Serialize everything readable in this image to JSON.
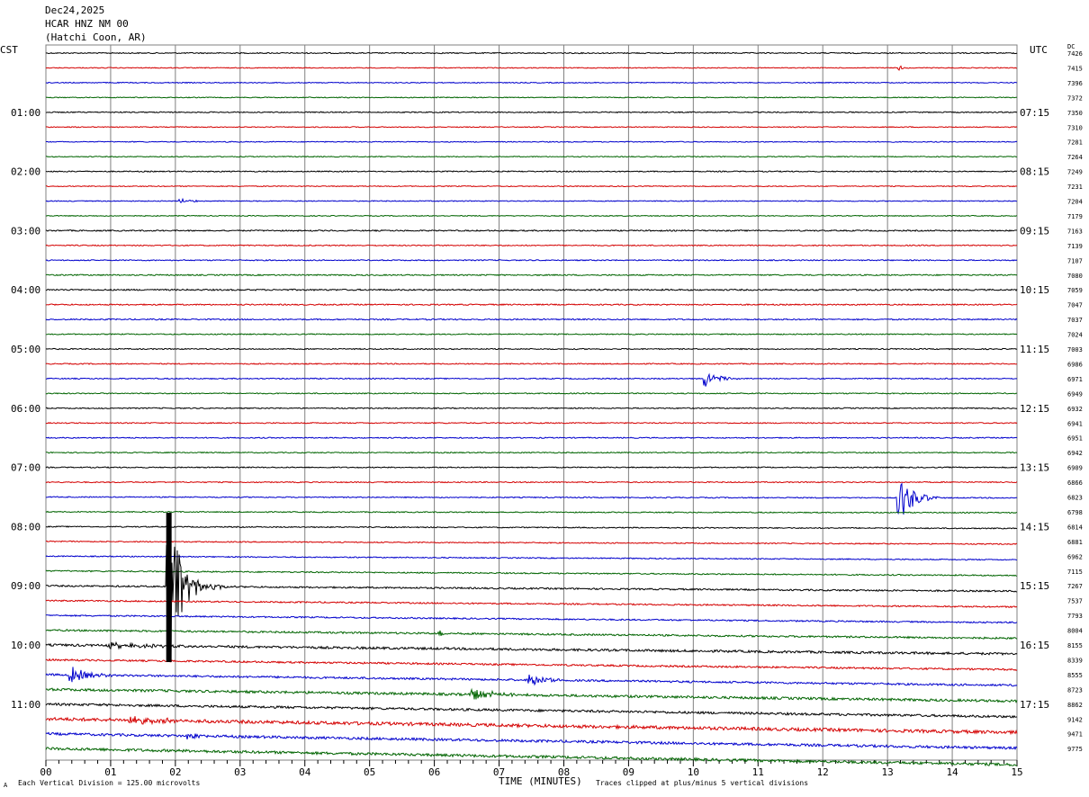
{
  "header": {
    "date": "Dec24,2025",
    "station": "HCAR HNZ NM 00",
    "location": "(Hatchi Coon, AR)"
  },
  "left_tz": "CST",
  "right_tz": "UTC",
  "dc_label": "DC",
  "footer": {
    "scale": "Each Vertical Division =  125.00 microvolts",
    "xlabel": "TIME (MINUTES)",
    "clip_note": "Traces clipped at plus/minus 5 vertical divisions",
    "corner": "A"
  },
  "colors": {
    "black": "#000000",
    "red": "#d40000",
    "blue": "#0000cc",
    "green": "#006400",
    "grid": "#808080"
  },
  "chart_data": {
    "type": "line",
    "title": "HCAR HNZ NM 00",
    "xlabel": "TIME (MINUTES)",
    "xlim": [
      0,
      15
    ],
    "x_ticks": [
      "00",
      "01",
      "02",
      "03",
      "04",
      "05",
      "06",
      "07",
      "08",
      "09",
      "10",
      "11",
      "12",
      "13",
      "14",
      "15"
    ],
    "trace_count": 48,
    "trace_interval_minutes": 15,
    "trace_colors_cycle": [
      "black",
      "red",
      "blue",
      "green"
    ],
    "left_time_labels": [
      {
        "trace": 4,
        "label": "01:00"
      },
      {
        "trace": 8,
        "label": "02:00"
      },
      {
        "trace": 12,
        "label": "03:00"
      },
      {
        "trace": 16,
        "label": "04:00"
      },
      {
        "trace": 20,
        "label": "05:00"
      },
      {
        "trace": 24,
        "label": "06:00"
      },
      {
        "trace": 28,
        "label": "07:00"
      },
      {
        "trace": 32,
        "label": "08:00"
      },
      {
        "trace": 36,
        "label": "09:00"
      },
      {
        "trace": 40,
        "label": "10:00"
      },
      {
        "trace": 44,
        "label": "11:00"
      }
    ],
    "right_time_labels": [
      {
        "trace": 4,
        "label": "07:15"
      },
      {
        "trace": 8,
        "label": "08:15"
      },
      {
        "trace": 12,
        "label": "09:15"
      },
      {
        "trace": 16,
        "label": "10:15"
      },
      {
        "trace": 20,
        "label": "11:15"
      },
      {
        "trace": 24,
        "label": "12:15"
      },
      {
        "trace": 28,
        "label": "13:15"
      },
      {
        "trace": 32,
        "label": "14:15"
      },
      {
        "trace": 36,
        "label": "15:15"
      },
      {
        "trace": 40,
        "label": "16:15"
      },
      {
        "trace": 44,
        "label": "17:15"
      }
    ],
    "dc_offsets": [
      7426,
      7415,
      7396,
      7372,
      7350,
      7310,
      7281,
      7264,
      7249,
      7231,
      7204,
      7179,
      7163,
      7139,
      7107,
      7080,
      7059,
      7047,
      7037,
      7024,
      7003,
      6986,
      6971,
      6949,
      6932,
      6941,
      6951,
      6942,
      6909,
      6866,
      6823,
      6798,
      6814,
      6881,
      6962,
      7115,
      7267,
      7537,
      7793,
      8004,
      8155,
      8339,
      8555,
      8723,
      8862,
      9142,
      9471,
      9775
    ],
    "noise_levels": [
      0.6,
      0.5,
      0.5,
      0.5,
      0.6,
      0.5,
      0.5,
      0.5,
      0.6,
      0.5,
      0.5,
      0.5,
      0.7,
      0.6,
      0.6,
      0.7,
      0.8,
      0.7,
      0.7,
      0.6,
      0.6,
      0.6,
      0.6,
      0.6,
      0.6,
      0.6,
      0.6,
      0.6,
      0.6,
      0.6,
      0.6,
      0.6,
      0.6,
      0.6,
      0.6,
      0.7,
      0.9,
      0.8,
      0.8,
      1.0,
      1.3,
      1.0,
      1.1,
      1.4,
      1.3,
      1.8,
      1.4,
      1.5
    ],
    "drift": [
      0,
      0,
      0,
      0,
      0,
      0,
      0,
      0,
      0,
      0,
      0,
      0,
      0,
      0,
      0,
      0,
      0,
      0,
      0,
      0,
      0,
      0,
      0,
      0,
      0,
      0,
      0,
      0,
      0,
      0,
      1,
      1,
      2,
      3,
      4,
      5,
      6,
      7,
      8,
      9,
      10,
      11,
      12,
      13,
      14,
      15,
      16,
      18
    ],
    "events": [
      {
        "trace": 1,
        "minute": 13.2,
        "amplitude": 3,
        "duration": 0.15
      },
      {
        "trace": 10,
        "minute": 2.1,
        "amplitude": 2,
        "duration": 0.5
      },
      {
        "trace": 22,
        "minute": 10.2,
        "amplitude": 9,
        "duration": 0.5
      },
      {
        "trace": 30,
        "minute": 13.2,
        "amplitude": 24,
        "duration": 0.6
      },
      {
        "trace": 36,
        "minute": 1.9,
        "amplitude": 83,
        "duration": 0.5
      },
      {
        "trace": 36,
        "minute": 1.95,
        "amplitude": 15,
        "duration": 1.0
      },
      {
        "trace": 39,
        "minute": 6.1,
        "amplitude": 3,
        "duration": 0.3
      },
      {
        "trace": 40,
        "minute": 1.0,
        "amplitude": 3,
        "duration": 1.5
      },
      {
        "trace": 42,
        "minute": 0.4,
        "amplitude": 9,
        "duration": 0.8
      },
      {
        "trace": 42,
        "minute": 7.5,
        "amplitude": 8,
        "duration": 0.6
      },
      {
        "trace": 43,
        "minute": 6.6,
        "amplitude": 6,
        "duration": 1.0
      },
      {
        "trace": 45,
        "minute": 1.3,
        "amplitude": 4,
        "duration": 1.5
      },
      {
        "trace": 46,
        "minute": 2.2,
        "amplitude": 3,
        "duration": 0.6
      }
    ]
  }
}
